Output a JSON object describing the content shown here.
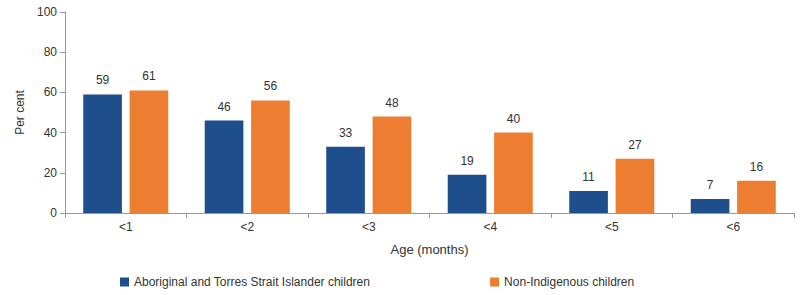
{
  "chart_data": {
    "type": "bar",
    "categories": [
      "<1",
      "<2",
      "<3",
      "<4",
      "<5",
      "<6"
    ],
    "series": [
      {
        "name": "Aboriginal and Torres Strait Islander children",
        "color": "#1f4e8c",
        "values": [
          59,
          46,
          33,
          19,
          11,
          7
        ]
      },
      {
        "name": "Non-Indigenous children",
        "color": "#ed7d31",
        "values": [
          61,
          56,
          48,
          40,
          27,
          16
        ]
      }
    ],
    "xlabel": "Age (months)",
    "ylabel": "Per cent",
    "ylim": [
      0,
      100
    ],
    "yticks": [
      0,
      20,
      40,
      60,
      80,
      100
    ],
    "grid": false,
    "legend": "bottom",
    "data_labels": true
  }
}
